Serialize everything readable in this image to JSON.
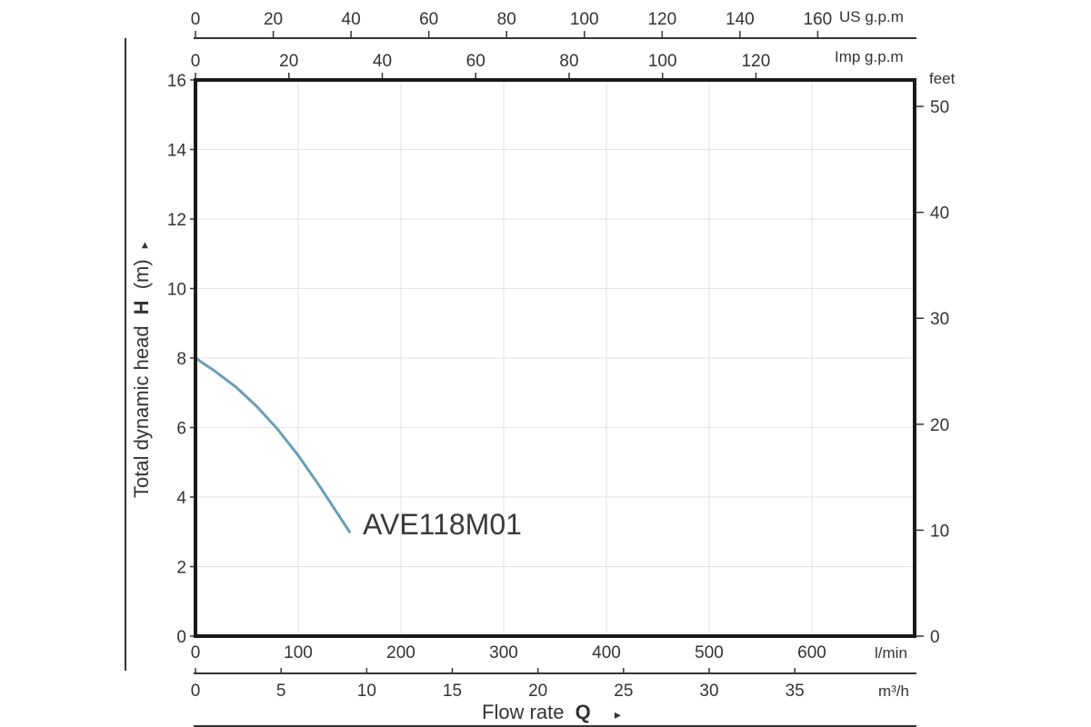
{
  "chart_data": {
    "type": "line",
    "series": [
      {
        "name": "AVE118M01",
        "x": [
          0,
          20,
          40,
          60,
          80,
          100,
          120,
          140,
          150
        ],
        "y": [
          8.0,
          7.6,
          7.15,
          6.6,
          5.95,
          5.2,
          4.35,
          3.45,
          3.0
        ]
      }
    ],
    "curve_label": "AVE118M01",
    "curve_color": "#6a9fb8",
    "xlim": [
      0,
      700
    ],
    "ylim": [
      0,
      16
    ],
    "grid": true,
    "bottom_axis": {
      "ticks": [
        0,
        100,
        200,
        300,
        400,
        500,
        600
      ],
      "unit": "l/min"
    },
    "m3h_axis": {
      "ticks": [
        0,
        5,
        10,
        15,
        20,
        25,
        30,
        35
      ],
      "unit": "m³/h"
    },
    "imp_axis": {
      "ticks": [
        0,
        20,
        40,
        60,
        80,
        100,
        120
      ],
      "unit": "Imp g.p.m"
    },
    "us_axis": {
      "ticks": [
        0,
        20,
        40,
        60,
        80,
        100,
        120,
        140,
        160
      ],
      "unit": "US g.p.m"
    },
    "left_axis": {
      "ticks": [
        0,
        2,
        4,
        6,
        8,
        10,
        12,
        14,
        16
      ],
      "title_prefix": "Total dynamic head",
      "title_symbol": "H",
      "title_suffix": "(m)",
      "arrow": "▸"
    },
    "right_axis": {
      "ticks": [
        0,
        10,
        20,
        30,
        40,
        50
      ],
      "unit": "feet"
    },
    "xlabel": {
      "text": "Flow rate",
      "symbol": "Q",
      "arrow": "▸"
    }
  }
}
